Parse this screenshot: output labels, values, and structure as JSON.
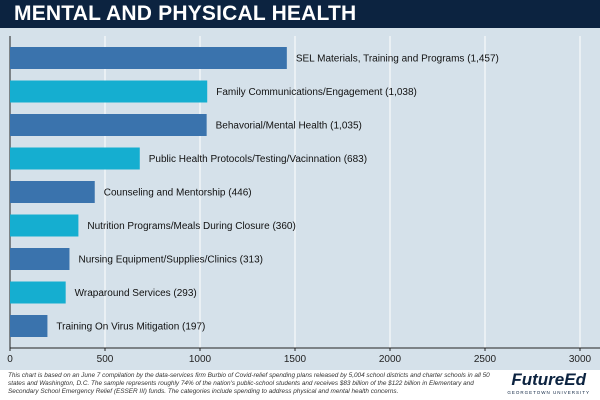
{
  "header": {
    "title": "MENTAL AND PHYSICAL HEALTH"
  },
  "colors": {
    "header_bg": "#0c2340",
    "plot_bg": "#d5e1ea",
    "bar_dark": "#3a73ad",
    "bar_light": "#15aed0"
  },
  "chart_data": {
    "type": "bar",
    "orientation": "horizontal",
    "categories": [
      "SEL Materials, Training and Programs (1,457)",
      "Family Communications/Engagement (1,038)",
      "Behavorial/Mental Health (1,035)",
      "Public Health Protocols/Testing/Vacinnation (683)",
      "Counseling and Mentorship (446)",
      "Nutrition Programs/Meals During Closure (360)",
      "Nursing Equipment/Supplies/Clinics (313)",
      "Wraparound Services (293)",
      "Training On Virus Mitigation (197)"
    ],
    "values": [
      1457,
      1038,
      1035,
      683,
      446,
      360,
      313,
      293,
      197
    ],
    "xlim": [
      0,
      3000
    ],
    "xticks": [
      "0",
      "500",
      "1000",
      "1500",
      "2000",
      "2500",
      "3000"
    ],
    "grid": true
  },
  "footer": {
    "note": "This chart is based on an June 7 compilation by the data-services firm Burbio of Covid-relief spending plans released by 5,004 school districts and charter schools in all 50 states and Washington, D.C. The sample represents roughly 74% of the nation's public-school students and receives $83 billion of the $122 billion in Elementary and Secondary School Emergency Relief (ESSER III) funds. The categories include spending to address physical and mental health concerns.",
    "logo": "FutureEd",
    "logo_sub": "GEORGETOWN UNIVERSITY"
  }
}
